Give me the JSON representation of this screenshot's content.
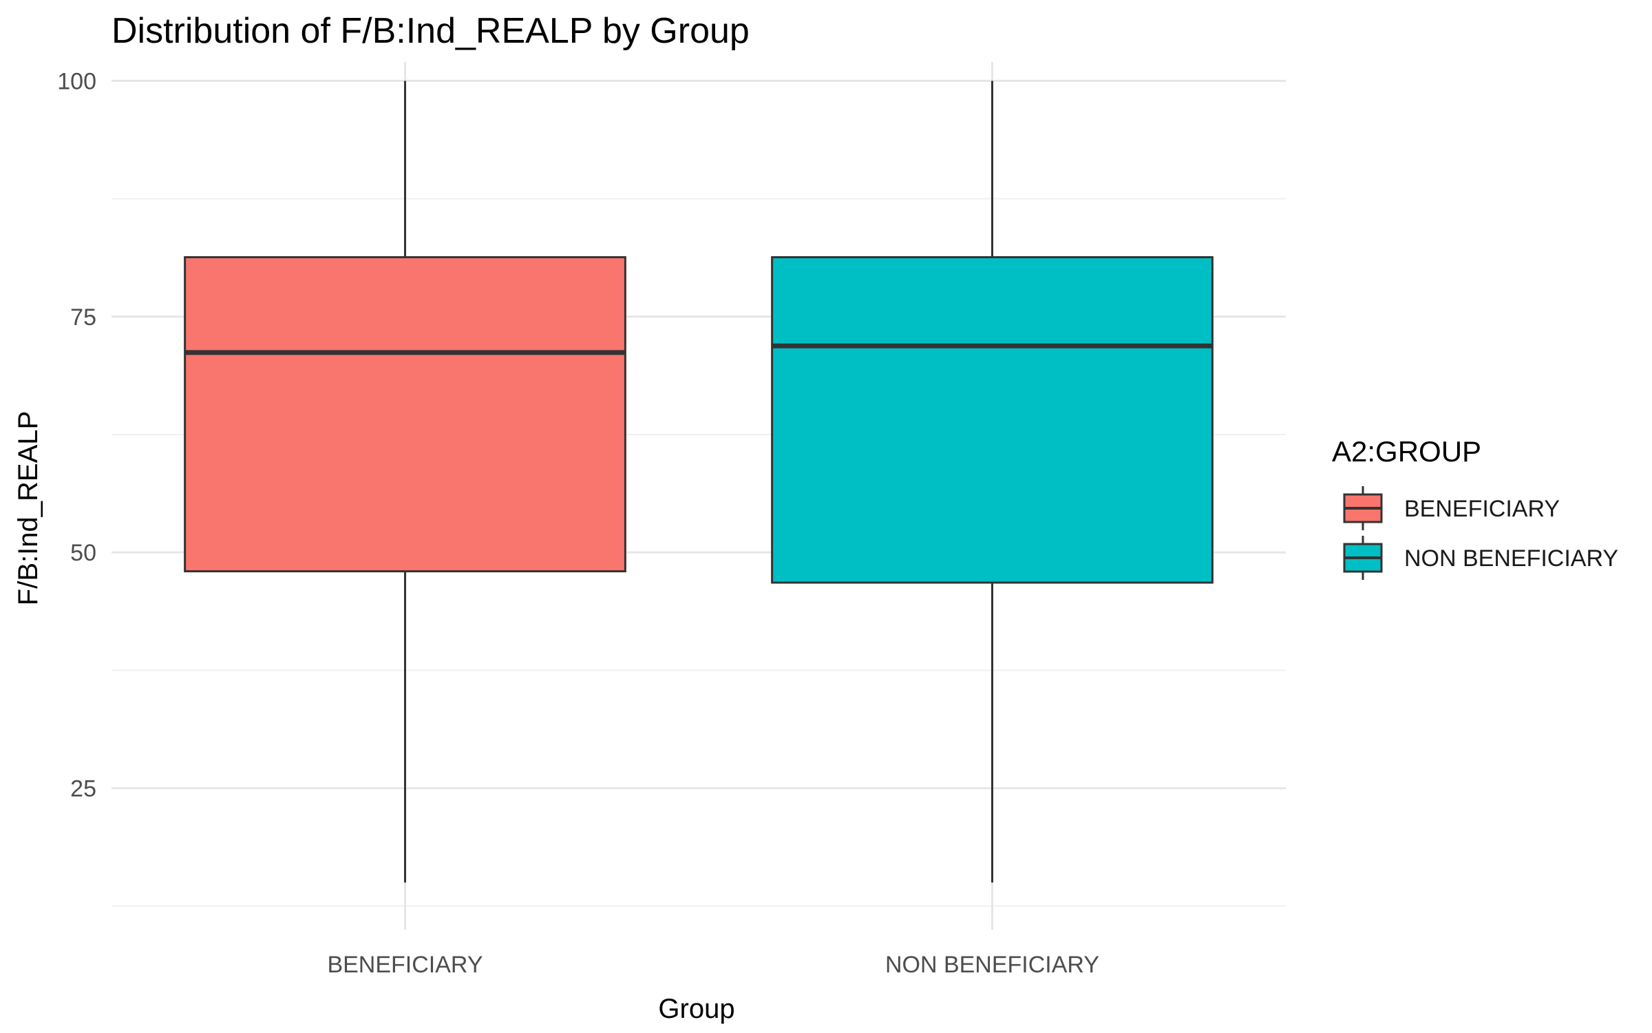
{
  "chart_data": {
    "type": "boxplot",
    "title": "Distribution of F/B:Ind_REALP by Group",
    "xlabel": "Group",
    "ylabel": "F/B:Ind_REALP",
    "ylim": [
      10,
      102
    ],
    "y_ticks": [
      25,
      50,
      75,
      100
    ],
    "grid": true,
    "categories": [
      "BENEFICIARY",
      "NON BENEFICIARY"
    ],
    "boxes": [
      {
        "category": "BENEFICIARY",
        "min": 15,
        "q1": 48,
        "median": 71.2,
        "q3": 81.3,
        "max": 100,
        "color": "#F8766D"
      },
      {
        "category": "NON BENEFICIARY",
        "min": 15,
        "q1": 46.8,
        "median": 71.9,
        "q3": 81.3,
        "max": 100,
        "color": "#00BFC4"
      }
    ],
    "legend": {
      "title": "A2:GROUP",
      "placement": "right",
      "entries": [
        {
          "label": "BENEFICIARY",
          "color": "#F8766D"
        },
        {
          "label": "NON BENEFICIARY",
          "color": "#00BFC4"
        }
      ]
    }
  }
}
